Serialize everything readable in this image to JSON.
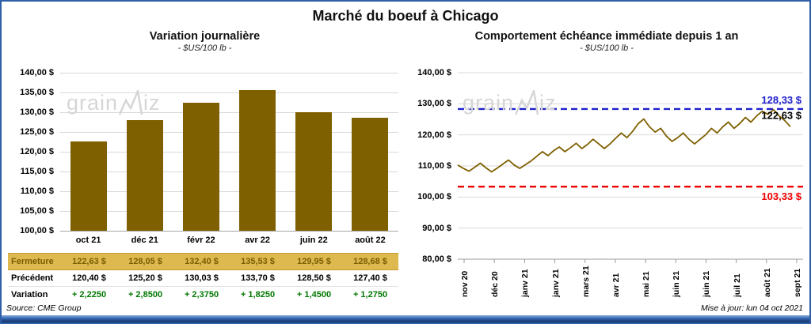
{
  "title": "Marché du boeuf à Chicago",
  "watermark": {
    "text": "grainwiz",
    "part1": "grain",
    "part2": "iz"
  },
  "colors": {
    "series": "#7F6000",
    "resistance": "#2020CC",
    "support": "#EE0000",
    "variation_positive": "#007800",
    "fermeture_bg": "#DDB94F",
    "fermeture_text": "#7A5C00",
    "frame_blue": "#2e5fa8"
  },
  "footer": {
    "source": "Source: CME Group",
    "updated": "Mise à jour: lun 04 oct 2021"
  },
  "chart_data": [
    {
      "type": "bar",
      "title": "Variation  journalière",
      "subtitle": "- $US/100 lb -",
      "categories": [
        "oct 21",
        "déc 21",
        "févr 22",
        "avr 22",
        "juin 22",
        "août 22"
      ],
      "values": [
        122.63,
        128.05,
        132.4,
        135.53,
        129.95,
        128.68
      ],
      "ylim": [
        100,
        140
      ],
      "ytick_step": 5,
      "ytick_labels": [
        "140,00 $",
        "135,00 $",
        "130,00 $",
        "125,00 $",
        "120,00 $",
        "115,00 $",
        "110,00 $",
        "105,00 $",
        "100,00 $"
      ],
      "grid": true,
      "table": {
        "rows": [
          {
            "label": "Fermeture",
            "values": [
              "122,63  $",
              "128,05  $",
              "132,40  $",
              "135,53  $",
              "129,95  $",
              "128,68  $"
            ]
          },
          {
            "label": "Précédent",
            "values": [
              "120,40  $",
              "125,20  $",
              "130,03  $",
              "133,70  $",
              "128,50  $",
              "127,40  $"
            ]
          },
          {
            "label": "Variation",
            "values": [
              "+ 2,2250",
              "+ 2,8500",
              "+ 2,3750",
              "+ 1,8250",
              "+ 1,4500",
              "+ 1,2750"
            ]
          }
        ]
      }
    },
    {
      "type": "line",
      "title": "Comportement  échéance immédiate depuis 1 an",
      "subtitle": "- $US/100 lb -",
      "x_labels": [
        "nov 20",
        "déc 20",
        "janv 21",
        "janv 21",
        "mars 21",
        "avr 21",
        "mai 21",
        "juin 21",
        "juin 21",
        "juil 21",
        "août 21",
        "sept 21"
      ],
      "ylim": [
        80,
        140
      ],
      "ytick_step": 10,
      "ytick_labels": [
        "140,00 $",
        "130,00 $",
        "120,00 $",
        "110,00 $",
        "100,00 $",
        "90,00 $",
        "80,00 $"
      ],
      "grid": true,
      "hlines": [
        {
          "value": 128.33,
          "label": "128,33 $",
          "color": "#2020CC",
          "style": "dashed",
          "label_pos": "above"
        },
        {
          "value": 103.33,
          "label": "103,33 $",
          "color": "#EE0000",
          "style": "dashed",
          "label_pos": "below"
        }
      ],
      "last_label": "122,63 $",
      "series": [
        {
          "name": "échéance immédiate",
          "values": [
            110.3,
            109.2,
            108.3,
            109.6,
            110.9,
            109.4,
            108.1,
            109.3,
            110.6,
            111.9,
            110.3,
            109.2,
            110.4,
            111.6,
            113.1,
            114.6,
            113.3,
            114.9,
            116.1,
            114.6,
            115.9,
            117.3,
            115.6,
            116.9,
            118.6,
            117.1,
            115.6,
            117.1,
            118.9,
            120.6,
            119.1,
            121.1,
            123.6,
            125.1,
            122.6,
            120.9,
            122.1,
            119.6,
            117.9,
            119.1,
            120.6,
            118.6,
            117.1,
            118.6,
            120.1,
            122.1,
            120.6,
            122.6,
            124.1,
            122.1,
            123.6,
            125.6,
            124.1,
            126.1,
            127.6,
            126.6,
            128.1,
            126.1,
            124.6,
            122.63
          ]
        }
      ]
    }
  ]
}
